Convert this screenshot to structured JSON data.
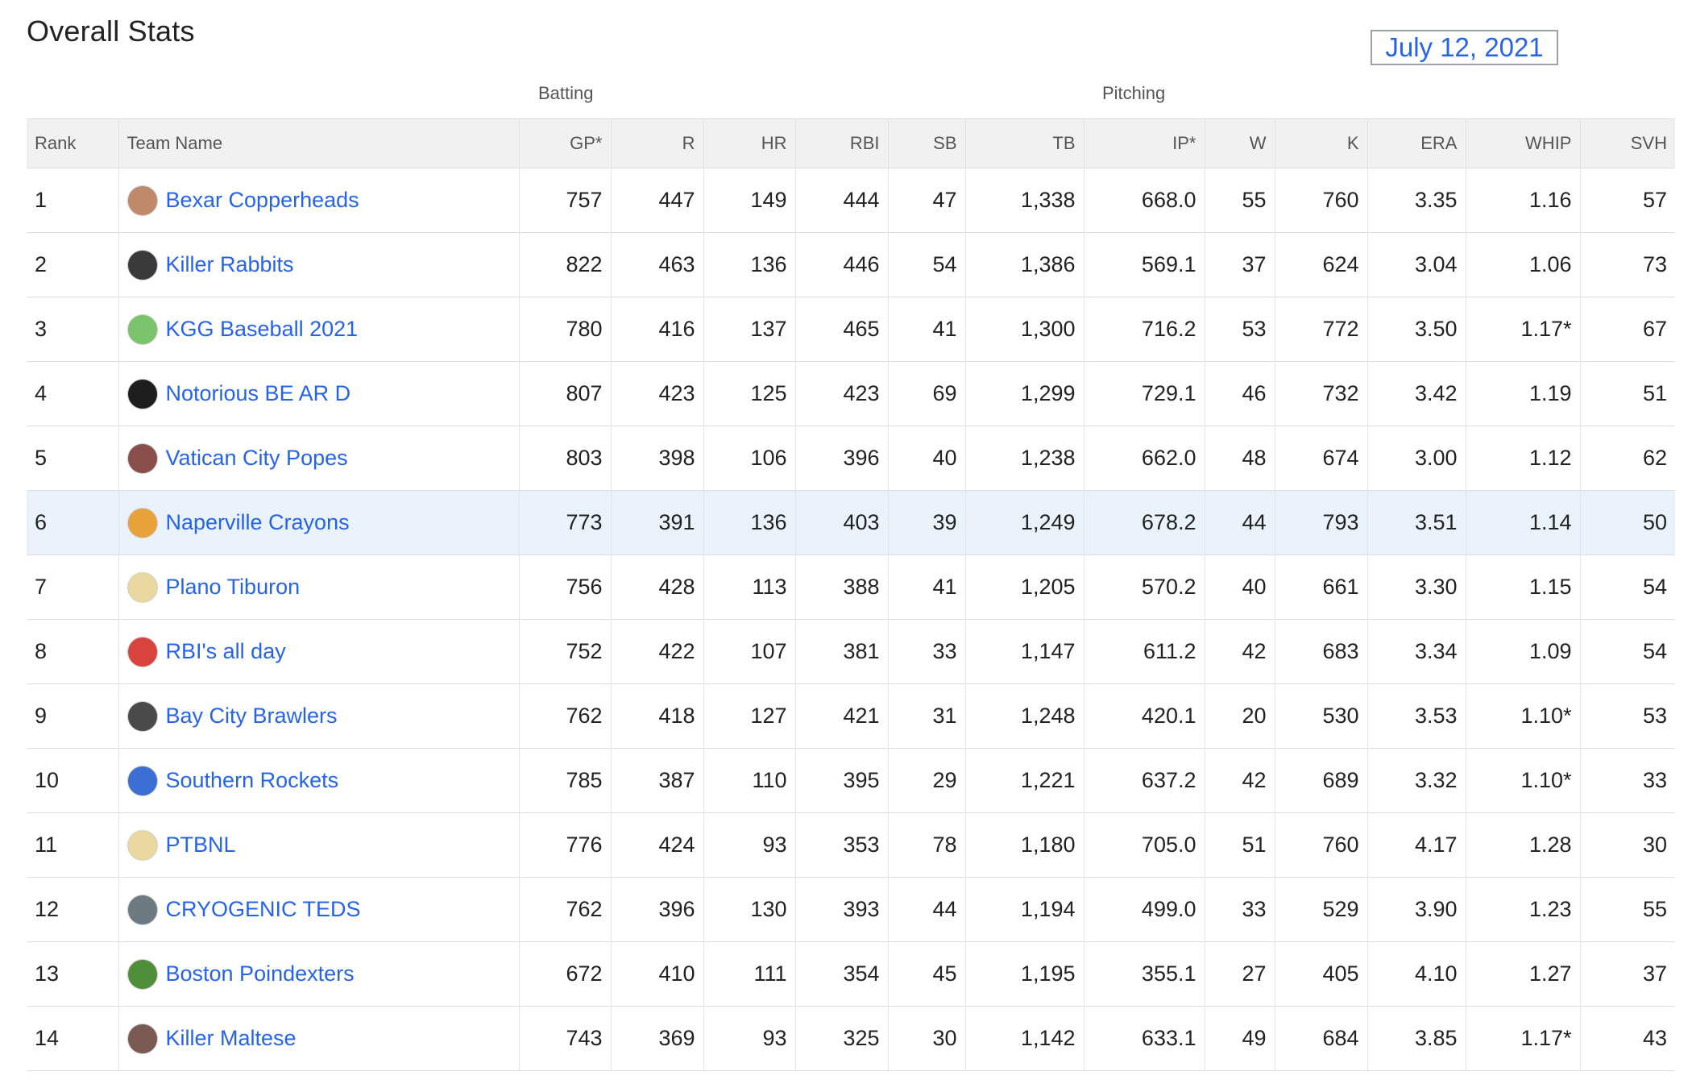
{
  "page": {
    "title": "Overall Stats",
    "date": "July 12, 2021"
  },
  "groups": {
    "batting": "Batting",
    "pitching": "Pitching"
  },
  "columns": [
    {
      "key": "rank",
      "label": "Rank"
    },
    {
      "key": "team",
      "label": "Team Name"
    },
    {
      "key": "gp",
      "label": "GP*"
    },
    {
      "key": "r",
      "label": "R"
    },
    {
      "key": "hr",
      "label": "HR"
    },
    {
      "key": "rbi",
      "label": "RBI"
    },
    {
      "key": "sb",
      "label": "SB"
    },
    {
      "key": "tb",
      "label": "TB"
    },
    {
      "key": "ip",
      "label": "IP*"
    },
    {
      "key": "w",
      "label": "W"
    },
    {
      "key": "k",
      "label": "K"
    },
    {
      "key": "era",
      "label": "ERA"
    },
    {
      "key": "whip",
      "label": "WHIP"
    },
    {
      "key": "svh",
      "label": "SVH"
    }
  ],
  "highlight_color": "#eaf3fb",
  "link_color": "#2563eb",
  "rows": [
    {
      "rank": "1",
      "team": "Bexar Copperheads",
      "logo_icon": "snake-logo-icon",
      "logo_color": "#c08a6a",
      "gp": "757",
      "r": "447",
      "hr": "149",
      "rbi": "444",
      "sb": "47",
      "tb": "1,338",
      "ip": "668.0",
      "w": "55",
      "k": "760",
      "era": "3.35",
      "whip": "1.16",
      "whip_flagged": false,
      "svh": "57"
    },
    {
      "rank": "2",
      "team": "Killer Rabbits",
      "logo_icon": "rabbit-logo-icon",
      "logo_color": "#3a3a3a",
      "gp": "822",
      "r": "463",
      "hr": "136",
      "rbi": "446",
      "sb": "54",
      "tb": "1,386",
      "ip": "569.1",
      "w": "37",
      "k": "624",
      "era": "3.04",
      "whip": "1.06",
      "whip_flagged": false,
      "svh": "73"
    },
    {
      "rank": "3",
      "team": "KGG Baseball 2021",
      "logo_icon": "cap-logo-icon",
      "logo_color": "#7cc36e",
      "gp": "780",
      "r": "416",
      "hr": "137",
      "rbi": "465",
      "sb": "41",
      "tb": "1,300",
      "ip": "716.2",
      "w": "53",
      "k": "772",
      "era": "3.50",
      "whip": "1.17*",
      "whip_flagged": true,
      "svh": "67"
    },
    {
      "rank": "4",
      "team": "Notorious BE AR D",
      "logo_icon": "bear-logo-icon",
      "logo_color": "#1e1e1e",
      "gp": "807",
      "r": "423",
      "hr": "125",
      "rbi": "423",
      "sb": "69",
      "tb": "1,299",
      "ip": "729.1",
      "w": "46",
      "k": "732",
      "era": "3.42",
      "whip": "1.19",
      "whip_flagged": false,
      "svh": "51"
    },
    {
      "rank": "5",
      "team": "Vatican City Popes",
      "logo_icon": "pope-logo-icon",
      "logo_color": "#8a4f4a",
      "gp": "803",
      "r": "398",
      "hr": "106",
      "rbi": "396",
      "sb": "40",
      "tb": "1,238",
      "ip": "662.0",
      "w": "48",
      "k": "674",
      "era": "3.00",
      "whip": "1.12",
      "whip_flagged": false,
      "svh": "62"
    },
    {
      "rank": "6",
      "team": "Naperville Crayons",
      "logo_icon": "crayon-logo-icon",
      "logo_color": "#e8a23a",
      "gp": "773",
      "r": "391",
      "hr": "136",
      "rbi": "403",
      "sb": "39",
      "tb": "1,249",
      "ip": "678.2",
      "w": "44",
      "k": "793",
      "era": "3.51",
      "whip": "1.14",
      "whip_flagged": false,
      "svh": "50",
      "highlight": true
    },
    {
      "rank": "7",
      "team": "Plano Tiburon",
      "logo_icon": "cap-logo-icon",
      "logo_color": "#e9d9a0",
      "gp": "756",
      "r": "428",
      "hr": "113",
      "rbi": "388",
      "sb": "41",
      "tb": "1,205",
      "ip": "570.2",
      "w": "40",
      "k": "661",
      "era": "3.30",
      "whip": "1.15",
      "whip_flagged": false,
      "svh": "54"
    },
    {
      "rank": "8",
      "team": "RBI's all day",
      "logo_icon": "cap-logo-icon",
      "logo_color": "#d9433e",
      "gp": "752",
      "r": "422",
      "hr": "107",
      "rbi": "381",
      "sb": "33",
      "tb": "1,147",
      "ip": "611.2",
      "w": "42",
      "k": "683",
      "era": "3.34",
      "whip": "1.09",
      "whip_flagged": false,
      "svh": "54"
    },
    {
      "rank": "9",
      "team": "Bay City Brawlers",
      "logo_icon": "dog-logo-icon",
      "logo_color": "#4a4a4a",
      "gp": "762",
      "r": "418",
      "hr": "127",
      "rbi": "421",
      "sb": "31",
      "tb": "1,248",
      "ip": "420.1",
      "w": "20",
      "k": "530",
      "era": "3.53",
      "whip": "1.10*",
      "whip_flagged": true,
      "svh": "53"
    },
    {
      "rank": "10",
      "team": "Southern Rockets",
      "logo_icon": "rocket-logo-icon",
      "logo_color": "#3b6fd6",
      "gp": "785",
      "r": "387",
      "hr": "110",
      "rbi": "395",
      "sb": "29",
      "tb": "1,221",
      "ip": "637.2",
      "w": "42",
      "k": "689",
      "era": "3.32",
      "whip": "1.10*",
      "whip_flagged": true,
      "svh": "33"
    },
    {
      "rank": "11",
      "team": "PTBNL",
      "logo_icon": "cap-logo-icon",
      "logo_color": "#e9d9a0",
      "gp": "776",
      "r": "424",
      "hr": "93",
      "rbi": "353",
      "sb": "78",
      "tb": "1,180",
      "ip": "705.0",
      "w": "51",
      "k": "760",
      "era": "4.17",
      "whip": "1.28",
      "whip_flagged": false,
      "svh": "30"
    },
    {
      "rank": "12",
      "team": "CRYOGENIC TEDS",
      "logo_icon": "jar-logo-icon",
      "logo_color": "#6d7a82",
      "gp": "762",
      "r": "396",
      "hr": "130",
      "rbi": "393",
      "sb": "44",
      "tb": "1,194",
      "ip": "499.0",
      "w": "33",
      "k": "529",
      "era": "3.90",
      "whip": "1.23",
      "whip_flagged": false,
      "svh": "55"
    },
    {
      "rank": "13",
      "team": "Boston Poindexters",
      "logo_icon": "frog-logo-icon",
      "logo_color": "#4f8f3a",
      "gp": "672",
      "r": "410",
      "hr": "111",
      "rbi": "354",
      "sb": "45",
      "tb": "1,195",
      "ip": "355.1",
      "w": "27",
      "k": "405",
      "era": "4.10",
      "whip": "1.27",
      "whip_flagged": false,
      "svh": "37"
    },
    {
      "rank": "14",
      "team": "Killer Maltese",
      "logo_icon": "maltese-logo-icon",
      "logo_color": "#7a5a52",
      "gp": "743",
      "r": "369",
      "hr": "93",
      "rbi": "325",
      "sb": "30",
      "tb": "1,142",
      "ip": "633.1",
      "w": "49",
      "k": "684",
      "era": "3.85",
      "whip": "1.17*",
      "whip_flagged": true,
      "svh": "43"
    }
  ]
}
